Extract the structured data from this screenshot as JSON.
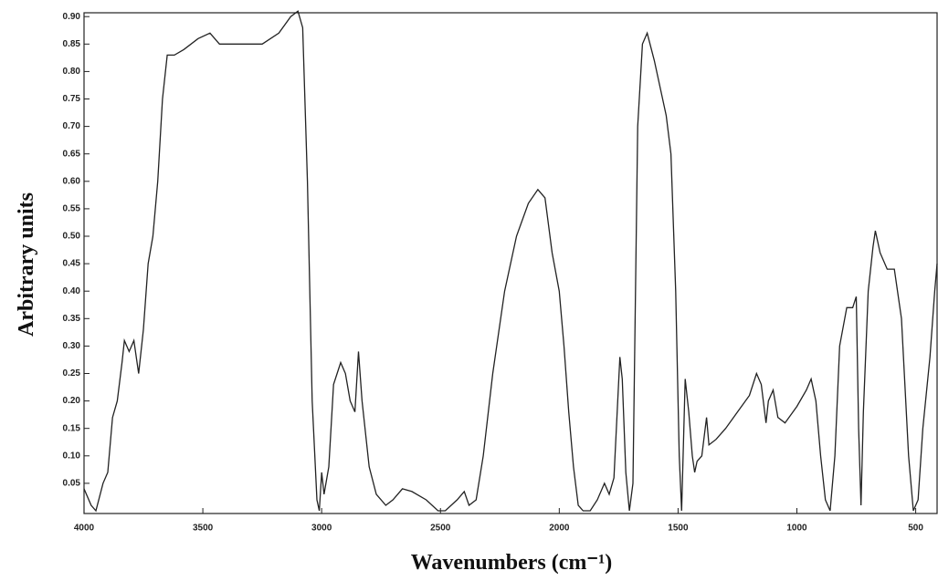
{
  "chart_data": {
    "type": "line",
    "xlabel": "Wavenumbers (cm⁻¹)",
    "ylabel": "Arbitrary units",
    "xlim": [
      4000,
      410
    ],
    "ylim": [
      -0.005,
      0.907
    ],
    "xticks": [
      4000,
      3500,
      3000,
      2500,
      2000,
      1500,
      1000,
      500
    ],
    "yticks": [
      0.05,
      {
        "value": 0.1,
        "label": "0.10"
      },
      0.15,
      {
        "value": 0.2,
        "label": "0.20"
      },
      0.25,
      {
        "value": 0.3,
        "label": "0.30"
      },
      0.35,
      {
        "value": 0.4,
        "label": "0.40"
      },
      0.45,
      {
        "value": 0.5,
        "label": "0.50"
      },
      0.55,
      {
        "value": 0.6,
        "label": "0.60"
      },
      0.65,
      {
        "value": 0.7,
        "label": "0.70"
      },
      0.75,
      {
        "value": 0.8,
        "label": "0.80"
      },
      0.85,
      {
        "value": 0.9,
        "label": "0.90"
      }
    ],
    "color": "#222222",
    "x": [
      4000,
      3970,
      3950,
      3920,
      3900,
      3880,
      3860,
      3840,
      3830,
      3810,
      3790,
      3770,
      3750,
      3730,
      3710,
      3690,
      3670,
      3650,
      3620,
      3580,
      3520,
      3470,
      3430,
      3350,
      3250,
      3180,
      3130,
      3100,
      3080,
      3060,
      3040,
      3020,
      3010,
      3000,
      2990,
      2970,
      2950,
      2920,
      2900,
      2880,
      2860,
      2845,
      2830,
      2800,
      2770,
      2730,
      2700,
      2660,
      2620,
      2560,
      2510,
      2480,
      2430,
      2400,
      2380,
      2350,
      2320,
      2280,
      2230,
      2180,
      2130,
      2090,
      2060,
      2030,
      2000,
      1980,
      1960,
      1940,
      1920,
      1900,
      1870,
      1840,
      1810,
      1790,
      1770,
      1745,
      1735,
      1720,
      1705,
      1690,
      1670,
      1650,
      1630,
      1600,
      1570,
      1550,
      1530,
      1510,
      1495,
      1485,
      1470,
      1455,
      1440,
      1430,
      1420,
      1400,
      1380,
      1370,
      1340,
      1300,
      1250,
      1200,
      1170,
      1150,
      1130,
      1120,
      1100,
      1080,
      1050,
      1000,
      960,
      940,
      920,
      900,
      880,
      860,
      840,
      820,
      790,
      765,
      750,
      740,
      730,
      720,
      700,
      680,
      670,
      650,
      620,
      590,
      560,
      530,
      510,
      490,
      470,
      440,
      420,
      410
    ],
    "values": [
      0.04,
      0.01,
      0.0,
      0.05,
      0.07,
      0.17,
      0.2,
      0.27,
      0.31,
      0.29,
      0.31,
      0.25,
      0.33,
      0.45,
      0.5,
      0.6,
      0.75,
      0.83,
      0.83,
      0.84,
      0.86,
      0.87,
      0.85,
      0.85,
      0.85,
      0.87,
      0.9,
      0.91,
      0.88,
      0.6,
      0.2,
      0.02,
      0.0,
      0.07,
      0.03,
      0.08,
      0.23,
      0.27,
      0.25,
      0.2,
      0.18,
      0.29,
      0.2,
      0.08,
      0.03,
      0.01,
      0.02,
      0.04,
      0.035,
      0.02,
      0.0,
      0.0,
      0.02,
      0.035,
      0.01,
      0.02,
      0.1,
      0.25,
      0.4,
      0.5,
      0.56,
      0.585,
      0.57,
      0.47,
      0.4,
      0.3,
      0.18,
      0.08,
      0.01,
      0.0,
      0.0,
      0.02,
      0.05,
      0.03,
      0.06,
      0.28,
      0.24,
      0.07,
      0.0,
      0.05,
      0.7,
      0.85,
      0.87,
      0.82,
      0.76,
      0.72,
      0.65,
      0.4,
      0.1,
      0.0,
      0.24,
      0.18,
      0.1,
      0.07,
      0.09,
      0.1,
      0.17,
      0.12,
      0.13,
      0.15,
      0.18,
      0.21,
      0.25,
      0.23,
      0.16,
      0.2,
      0.22,
      0.17,
      0.16,
      0.19,
      0.22,
      0.24,
      0.2,
      0.1,
      0.02,
      0.0,
      0.1,
      0.3,
      0.37,
      0.37,
      0.39,
      0.15,
      0.01,
      0.18,
      0.4,
      0.48,
      0.51,
      0.47,
      0.44,
      0.44,
      0.35,
      0.1,
      0.0,
      0.02,
      0.15,
      0.28,
      0.4,
      0.45
    ]
  }
}
